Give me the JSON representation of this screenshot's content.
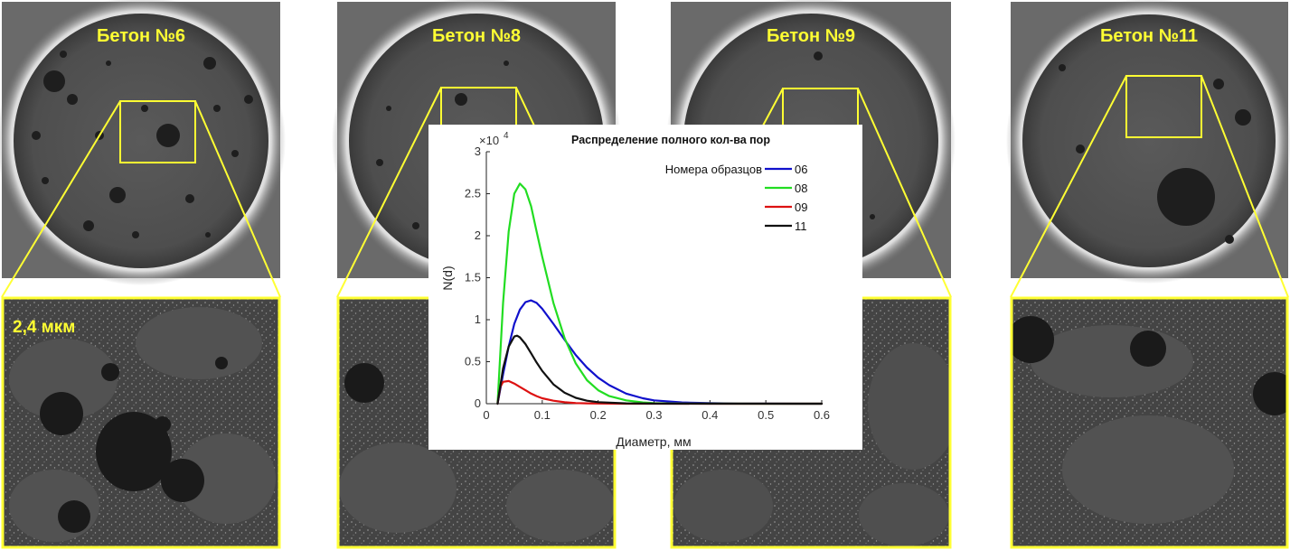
{
  "panels": [
    {
      "title": "Бетон №6"
    },
    {
      "title": "Бетон №8"
    },
    {
      "title": "Бетон №9"
    },
    {
      "title": "Бетон №11"
    }
  ],
  "scale_label": "2,4 мкм",
  "colors": {
    "highlight": "#ffff33",
    "panel_bg": "#4a4a4a"
  },
  "chart_data": {
    "type": "line",
    "title": "Распределение полного кол-ва пор",
    "xlabel": "Диаметр, мм",
    "ylabel": "N(d)",
    "y_multiplier": "×10",
    "y_exponent": "4",
    "xlim": [
      0,
      0.6
    ],
    "ylim": [
      0,
      3
    ],
    "x_ticks": [
      "0",
      "0.1",
      "0.2",
      "0.3",
      "0.4",
      "0.5",
      "0.6"
    ],
    "y_ticks": [
      "0",
      "0.5",
      "1",
      "1.5",
      "2",
      "2.5",
      "3"
    ],
    "legend_title": "Номера образцов",
    "legend_position": "top-right",
    "series": [
      {
        "name": "06",
        "color": "#1010cc",
        "x": [
          0.02,
          0.03,
          0.04,
          0.05,
          0.06,
          0.07,
          0.08,
          0.09,
          0.1,
          0.12,
          0.14,
          0.16,
          0.18,
          0.2,
          0.22,
          0.25,
          0.28,
          0.3,
          0.35,
          0.4,
          0.45,
          0.5,
          0.6
        ],
        "y": [
          0,
          0.35,
          0.68,
          0.95,
          1.12,
          1.21,
          1.23,
          1.2,
          1.13,
          0.95,
          0.76,
          0.58,
          0.43,
          0.31,
          0.22,
          0.12,
          0.065,
          0.04,
          0.015,
          0.006,
          0.002,
          0.001,
          0
        ]
      },
      {
        "name": "08",
        "color": "#22dd22",
        "x": [
          0.02,
          0.03,
          0.04,
          0.05,
          0.06,
          0.07,
          0.08,
          0.09,
          0.1,
          0.12,
          0.14,
          0.16,
          0.18,
          0.2,
          0.22,
          0.25,
          0.28,
          0.3,
          0.35,
          0.4,
          0.5,
          0.6
        ],
        "y": [
          0,
          1.2,
          2.05,
          2.5,
          2.62,
          2.55,
          2.35,
          2.05,
          1.75,
          1.2,
          0.78,
          0.48,
          0.28,
          0.16,
          0.09,
          0.04,
          0.015,
          0.008,
          0.002,
          0.001,
          0,
          0
        ]
      },
      {
        "name": "09",
        "color": "#dd1111",
        "x": [
          0.02,
          0.025,
          0.03,
          0.04,
          0.05,
          0.06,
          0.07,
          0.08,
          0.09,
          0.1,
          0.12,
          0.14,
          0.16,
          0.18,
          0.2,
          0.25,
          0.3,
          0.4,
          0.6
        ],
        "y": [
          0,
          0.2,
          0.26,
          0.27,
          0.24,
          0.2,
          0.16,
          0.12,
          0.09,
          0.065,
          0.035,
          0.017,
          0.008,
          0.004,
          0.002,
          0,
          0,
          0,
          0
        ]
      },
      {
        "name": "11",
        "color": "#111111",
        "x": [
          0.02,
          0.03,
          0.04,
          0.05,
          0.055,
          0.06,
          0.07,
          0.08,
          0.09,
          0.1,
          0.12,
          0.14,
          0.16,
          0.18,
          0.2,
          0.25,
          0.3,
          0.4,
          0.6
        ],
        "y": [
          0,
          0.42,
          0.68,
          0.8,
          0.81,
          0.79,
          0.71,
          0.6,
          0.49,
          0.39,
          0.23,
          0.13,
          0.07,
          0.035,
          0.018,
          0.004,
          0.001,
          0,
          0
        ]
      }
    ]
  }
}
